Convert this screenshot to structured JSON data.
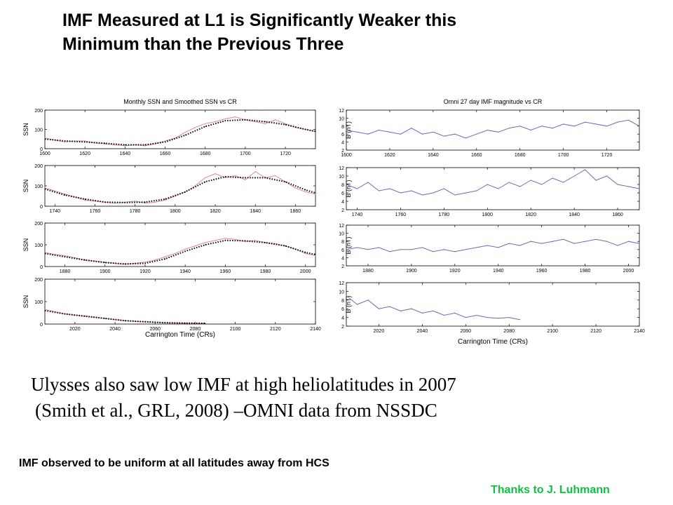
{
  "slide": {
    "title_line1": "IMF Measured at L1 is Significantly Weaker this",
    "title_line2": "Minimum than the Previous Three",
    "caption_line1": "Ulysses also saw low IMF at high heliolatitudes in 2007",
    "caption_line2": "(Smith et al., GRL, 2008) –OMNI data from NSSDC",
    "note": "IMF observed to be uniform at all latitudes away from HCS",
    "credit": "Thanks to J. Luhmann"
  },
  "colors": {
    "ssn_monthly": "#d98a8a",
    "ssn_smoothed": "#000000",
    "imf": "#6b6bb8",
    "credit": "#10c040"
  },
  "chart_data": [
    {
      "type": "line",
      "title": "Monthly SSN and Smoothed SSN vs CR",
      "xlabel": "Carrington Time (CRs)",
      "ylabel": "SSN",
      "ylim": [
        0,
        200
      ],
      "yticks": [
        0,
        100,
        200
      ],
      "grid": false,
      "panels": [
        {
          "xlim": [
            1600,
            1735
          ],
          "xticks": [
            1600,
            1620,
            1640,
            1660,
            1680,
            1700,
            1720
          ],
          "series": [
            {
              "style": "monthly",
              "x": [
                1600,
                1605,
                1610,
                1615,
                1620,
                1625,
                1630,
                1635,
                1640,
                1645,
                1650,
                1655,
                1660,
                1665,
                1670,
                1675,
                1680,
                1685,
                1690,
                1695,
                1700,
                1705,
                1710,
                1715,
                1720,
                1725,
                1730,
                1735
              ],
              "y": [
                55,
                45,
                35,
                40,
                40,
                30,
                25,
                20,
                15,
                20,
                15,
                25,
                40,
                55,
                85,
                110,
                130,
                140,
                155,
                165,
                150,
                140,
                130,
                150,
                130,
                110,
                100,
                90
              ]
            },
            {
              "style": "smoothed",
              "x": [
                1600,
                1610,
                1620,
                1630,
                1640,
                1650,
                1660,
                1670,
                1680,
                1690,
                1700,
                1710,
                1720,
                1730,
                1735
              ],
              "y": [
                50,
                40,
                35,
                28,
                20,
                20,
                35,
                70,
                115,
                145,
                150,
                140,
                125,
                100,
                90
              ]
            }
          ]
        },
        {
          "xlim": [
            1735,
            1870
          ],
          "xticks": [
            1740,
            1760,
            1780,
            1800,
            1820,
            1840,
            1860
          ],
          "series": [
            {
              "style": "monthly",
              "x": [
                1735,
                1740,
                1745,
                1750,
                1755,
                1760,
                1765,
                1770,
                1775,
                1780,
                1785,
                1790,
                1795,
                1800,
                1805,
                1810,
                1815,
                1820,
                1825,
                1830,
                1835,
                1840,
                1845,
                1850,
                1855,
                1860,
                1865,
                1870
              ],
              "y": [
                90,
                75,
                60,
                45,
                30,
                25,
                20,
                15,
                20,
                25,
                15,
                20,
                30,
                50,
                70,
                100,
                140,
                160,
                140,
                150,
                130,
                170,
                140,
                150,
                120,
                90,
                70,
                60
              ]
            },
            {
              "style": "smoothed",
              "x": [
                1735,
                1745,
                1755,
                1765,
                1775,
                1785,
                1795,
                1805,
                1815,
                1825,
                1835,
                1845,
                1855,
                1865,
                1870
              ],
              "y": [
                85,
                55,
                35,
                20,
                18,
                20,
                35,
                70,
                120,
                145,
                140,
                140,
                120,
                80,
                65
              ]
            }
          ]
        },
        {
          "xlim": [
            1870,
            2005
          ],
          "xticks": [
            1880,
            1900,
            1920,
            1940,
            1960,
            1980,
            2000
          ],
          "series": [
            {
              "style": "monthly",
              "x": [
                1870,
                1875,
                1880,
                1885,
                1890,
                1895,
                1900,
                1905,
                1910,
                1915,
                1920,
                1925,
                1930,
                1935,
                1940,
                1945,
                1950,
                1955,
                1960,
                1965,
                1970,
                1975,
                1980,
                1985,
                1990,
                1995,
                2000,
                2005
              ],
              "y": [
                65,
                55,
                50,
                40,
                30,
                25,
                20,
                15,
                10,
                15,
                20,
                30,
                45,
                60,
                80,
                95,
                110,
                120,
                130,
                125,
                115,
                120,
                110,
                105,
                95,
                80,
                60,
                50
              ]
            },
            {
              "style": "smoothed",
              "x": [
                1870,
                1880,
                1890,
                1900,
                1910,
                1920,
                1930,
                1940,
                1950,
                1960,
                1970,
                1980,
                1990,
                2000,
                2005
              ],
              "y": [
                60,
                45,
                30,
                18,
                12,
                15,
                35,
                70,
                100,
                120,
                118,
                110,
                95,
                65,
                55
              ]
            }
          ]
        },
        {
          "xlim": [
            2005,
            2140
          ],
          "xticks": [
            2020,
            2040,
            2060,
            2080,
            2100,
            2120,
            2140
          ],
          "series": [
            {
              "style": "monthly",
              "x": [
                2005,
                2010,
                2015,
                2020,
                2025,
                2030,
                2035,
                2040,
                2045,
                2050,
                2055,
                2060,
                2065,
                2070,
                2075,
                2080,
                2085
              ],
              "y": [
                65,
                55,
                45,
                40,
                35,
                30,
                25,
                20,
                15,
                12,
                10,
                8,
                6,
                5,
                4,
                3,
                3
              ]
            },
            {
              "style": "smoothed",
              "x": [
                2005,
                2015,
                2025,
                2035,
                2045,
                2055,
                2065,
                2075,
                2085
              ],
              "y": [
                60,
                45,
                35,
                25,
                15,
                10,
                6,
                4,
                3
              ]
            }
          ]
        }
      ]
    },
    {
      "type": "line",
      "title": "Omni 27 day IMF magnitude vs CR",
      "xlabel": "Carrington Time (CRs)",
      "ylabel": "B (nT)",
      "ylim": [
        2,
        12
      ],
      "yticks": [
        2,
        4,
        6,
        8,
        10,
        12
      ],
      "grid": false,
      "panels": [
        {
          "xlim": [
            1600,
            1735
          ],
          "xticks": [
            1600,
            1620,
            1640,
            1660,
            1680,
            1700,
            1720
          ],
          "series": [
            {
              "style": "imf",
              "x": [
                1600,
                1605,
                1610,
                1615,
                1620,
                1625,
                1630,
                1635,
                1640,
                1645,
                1650,
                1655,
                1660,
                1665,
                1670,
                1675,
                1680,
                1685,
                1690,
                1695,
                1700,
                1705,
                1710,
                1715,
                1720,
                1725,
                1730,
                1735
              ],
              "y": [
                7,
                6.5,
                6,
                7,
                6.5,
                6,
                7.5,
                6,
                6.5,
                5.5,
                6,
                5,
                6,
                7,
                6.5,
                7.5,
                8,
                7,
                8,
                7.5,
                8.5,
                8,
                9,
                8.5,
                8,
                9,
                9.5,
                8
              ]
            }
          ]
        },
        {
          "xlim": [
            1735,
            1870
          ],
          "xticks": [
            1740,
            1760,
            1780,
            1800,
            1820,
            1840,
            1860
          ],
          "series": [
            {
              "style": "imf",
              "x": [
                1735,
                1740,
                1745,
                1750,
                1755,
                1760,
                1765,
                1770,
                1775,
                1780,
                1785,
                1790,
                1795,
                1800,
                1805,
                1810,
                1815,
                1820,
                1825,
                1830,
                1835,
                1840,
                1845,
                1850,
                1855,
                1860,
                1865,
                1870
              ],
              "y": [
                8,
                7,
                8.5,
                6.5,
                7,
                6,
                6.5,
                5.5,
                6,
                7,
                5.5,
                6,
                6.5,
                8,
                7,
                8.5,
                7.5,
                9,
                8,
                9.5,
                8.5,
                10,
                11.5,
                9,
                10,
                8,
                7.5,
                7
              ]
            }
          ]
        },
        {
          "xlim": [
            1870,
            2005
          ],
          "xticks": [
            1880,
            1900,
            1920,
            1940,
            1960,
            1980,
            2000
          ],
          "series": [
            {
              "style": "imf",
              "x": [
                1870,
                1875,
                1880,
                1885,
                1890,
                1895,
                1900,
                1905,
                1910,
                1915,
                1920,
                1925,
                1930,
                1935,
                1940,
                1945,
                1950,
                1955,
                1960,
                1965,
                1970,
                1975,
                1980,
                1985,
                1990,
                1995,
                2000,
                2005
              ],
              "y": [
                6,
                6.5,
                6,
                6.5,
                5.5,
                6,
                6,
                6.5,
                5.5,
                6,
                5.5,
                6,
                6.5,
                7,
                6.5,
                7.5,
                7,
                8,
                7.5,
                8,
                8.5,
                7.5,
                8,
                8.5,
                8,
                7,
                8,
                7.5
              ]
            }
          ]
        },
        {
          "xlim": [
            2005,
            2140
          ],
          "xticks": [
            2020,
            2040,
            2060,
            2080,
            2100,
            2120,
            2140
          ],
          "series": [
            {
              "style": "imf",
              "x": [
                2005,
                2010,
                2015,
                2020,
                2025,
                2030,
                2035,
                2040,
                2045,
                2050,
                2055,
                2060,
                2065,
                2070,
                2075,
                2080,
                2085
              ],
              "y": [
                9,
                7,
                8,
                6,
                6.5,
                5.5,
                6,
                5,
                5.5,
                4.5,
                5,
                4,
                4.5,
                4,
                3.8,
                4,
                3.5
              ]
            }
          ]
        }
      ]
    }
  ]
}
